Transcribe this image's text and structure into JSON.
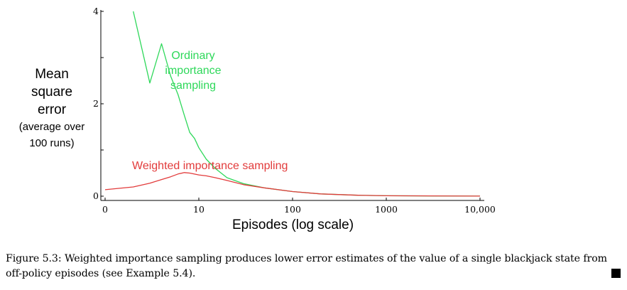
{
  "chart_data": {
    "type": "line",
    "xscale": "log",
    "xlabel": "Episodes (log scale)",
    "ylabel_lines": [
      "Mean",
      "square",
      "error"
    ],
    "ylabel_sub_lines": [
      "(average over",
      "100 runs)"
    ],
    "xlim": [
      1,
      10000
    ],
    "ylim": [
      0,
      4
    ],
    "xticks": [
      {
        "value": 1,
        "label": "0"
      },
      {
        "value": 10,
        "label": "10"
      },
      {
        "value": 100,
        "label": "100"
      },
      {
        "value": 1000,
        "label": "1000"
      },
      {
        "value": 10000,
        "label": "10,000"
      }
    ],
    "yticks": [
      {
        "value": 0,
        "label": "0"
      },
      {
        "value": 1,
        "label": ""
      },
      {
        "value": 2,
        "label": "2"
      },
      {
        "value": 3,
        "label": ""
      },
      {
        "value": 4,
        "label": "4"
      }
    ],
    "grid": false,
    "series": [
      {
        "name": "Ordinary importance sampling",
        "label_lines": [
          "Ordinary",
          "importance",
          "sampling"
        ],
        "color": "#2ed85a",
        "x": [
          2,
          3,
          4,
          5,
          6,
          7,
          8,
          9,
          10,
          12,
          15,
          20,
          30,
          50,
          100,
          200,
          500,
          1000,
          3000,
          10000
        ],
        "y": [
          4.0,
          2.45,
          3.3,
          2.6,
          2.2,
          1.75,
          1.38,
          1.25,
          1.05,
          0.8,
          0.6,
          0.4,
          0.27,
          0.18,
          0.1,
          0.05,
          0.02,
          0.01,
          0.005,
          0.002
        ]
      },
      {
        "name": "Weighted importance sampling",
        "label_lines": [
          "Weighted importance sampling"
        ],
        "color": "#e23b3b",
        "x": [
          1,
          2,
          3,
          4,
          5,
          6,
          7,
          8,
          10,
          12,
          15,
          20,
          30,
          50,
          100,
          200,
          500,
          1000,
          10000
        ],
        "y": [
          0.14,
          0.2,
          0.28,
          0.36,
          0.42,
          0.48,
          0.51,
          0.5,
          0.46,
          0.44,
          0.4,
          0.34,
          0.25,
          0.18,
          0.1,
          0.05,
          0.02,
          0.01,
          0.002
        ]
      }
    ]
  },
  "caption": {
    "label": "Figure 5.3:",
    "text": "Weighted importance sampling produces lower error estimates of the value of a single blackjack state from off-policy episodes (see Example 5.4)."
  }
}
